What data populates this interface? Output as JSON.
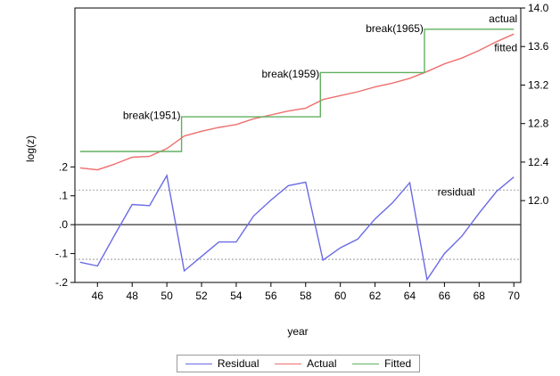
{
  "chart_data": {
    "type": "line",
    "xlabel": "year",
    "ylabel": "log(z)",
    "x": [
      45,
      46,
      47,
      48,
      49,
      50,
      51,
      52,
      53,
      54,
      55,
      56,
      57,
      58,
      59,
      60,
      61,
      62,
      63,
      64,
      65,
      66,
      67,
      68,
      69,
      70
    ],
    "x_ticks": [
      46,
      48,
      50,
      52,
      54,
      56,
      58,
      60,
      62,
      64,
      66,
      68,
      70
    ],
    "x_range": [
      44.7,
      70.4
    ],
    "left_axis": {
      "range": [
        -0.2,
        0.75
      ],
      "ticks": [
        -0.2,
        -0.1,
        0.0,
        0.1,
        0.2
      ],
      "tick_labels": [
        "-.2",
        "-.1",
        ".0",
        ".1",
        ".2"
      ]
    },
    "right_axis": {
      "range": [
        11.15,
        14.0
      ],
      "ticks": [
        12.0,
        12.4,
        12.8,
        13.2,
        13.6,
        14.0
      ],
      "tick_labels": [
        "12.0",
        "12.4",
        "12.8",
        "13.2",
        "13.6",
        "14.0"
      ]
    },
    "residual_band": [
      -0.12,
      0.12
    ],
    "series": [
      {
        "name": "Residual",
        "axis": "left",
        "color": "#6a6ae6",
        "values": [
          -0.13,
          -0.143,
          -0.035,
          0.07,
          0.066,
          0.17,
          -0.16,
          -0.11,
          -0.06,
          -0.06,
          0.03,
          0.085,
          0.135,
          0.147,
          -0.123,
          -0.08,
          -0.05,
          0.02,
          0.075,
          0.145,
          -0.19,
          -0.1,
          -0.04,
          0.04,
          0.115,
          0.165
        ]
      },
      {
        "name": "Actual",
        "axis": "right",
        "color": "#ef6f6f",
        "values": [
          12.34,
          12.32,
          12.38,
          12.45,
          12.46,
          12.54,
          12.67,
          12.72,
          12.76,
          12.79,
          12.85,
          12.89,
          12.93,
          12.96,
          13.05,
          13.09,
          13.13,
          13.18,
          13.22,
          13.27,
          13.34,
          13.42,
          13.48,
          13.56,
          13.65,
          13.73
        ]
      },
      {
        "name": "Fitted",
        "axis": "right",
        "color": "#60b060",
        "step": true,
        "breaks": [
          50.85,
          58.85,
          64.85
        ],
        "levels": [
          12.51,
          12.87,
          13.33,
          13.78
        ]
      }
    ],
    "annotations": [
      {
        "text": "break(1951)",
        "x": 51,
        "axis": "right",
        "y": 12.85
      },
      {
        "text": "break(1959)",
        "x": 59,
        "axis": "right",
        "y": 13.28
      },
      {
        "text": "break(1965)",
        "x": 65,
        "axis": "right",
        "y": 13.75
      },
      {
        "text": "actual",
        "x": 70,
        "axis": "right",
        "y": 13.85
      },
      {
        "text": "fitted",
        "x": 70,
        "axis": "right",
        "y": 13.55
      },
      {
        "text": "residual",
        "x": 65.6,
        "axis": "left",
        "y": 0.1
      }
    ],
    "legend": [
      "Residual",
      "Actual",
      "Fitted"
    ]
  }
}
